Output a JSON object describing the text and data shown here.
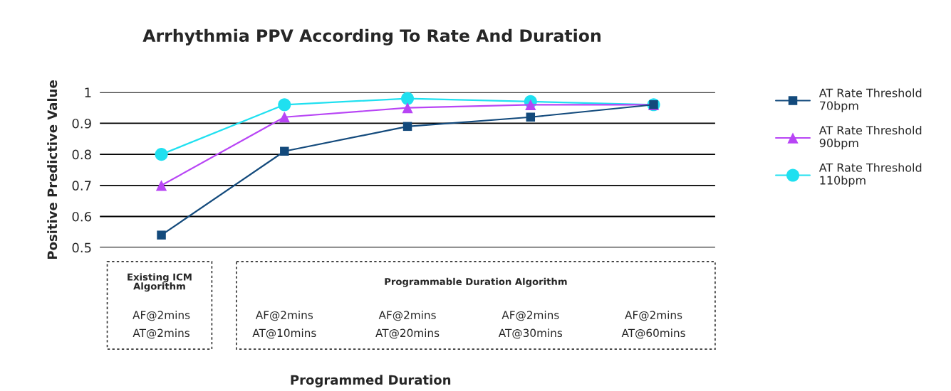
{
  "chart_data": {
    "type": "line",
    "title": "Arrhythmia PPV According To Rate And Duration",
    "xlabel": "Programmed Duration",
    "ylabel": "Positive Predictive Value",
    "categories": [
      "AF@2mins\nAT@2mins",
      "AF@2mins\nAT@10mins",
      "AF@2mins\nAT@20mins",
      "AF@2mins\nAT@30mins",
      "AF@2mins\nAT@60mins"
    ],
    "series": [
      {
        "name": "AT Rate Threshold\n70bpm",
        "color": "#134a7c",
        "marker": "square",
        "values": [
          0.54,
          0.81,
          0.89,
          0.92,
          0.96
        ]
      },
      {
        "name": "AT Rate Threshold\n90bpm",
        "color": "#b845f5",
        "marker": "triangle",
        "values": [
          0.7,
          0.92,
          0.95,
          0.96,
          0.96
        ]
      },
      {
        "name": "AT Rate Threshold\n110bpm",
        "color": "#1fe0f0",
        "marker": "circle",
        "values": [
          0.8,
          0.96,
          0.98,
          0.97,
          0.96
        ]
      }
    ],
    "ylim": [
      0.5,
      1
    ],
    "yticks": [
      0.5,
      0.6,
      0.7,
      0.8,
      0.9,
      1
    ],
    "grid": "y",
    "legend": "right",
    "annotations": [
      "Existing ICM\nAlgorithm",
      "Programmable Duration Algorithm"
    ]
  }
}
